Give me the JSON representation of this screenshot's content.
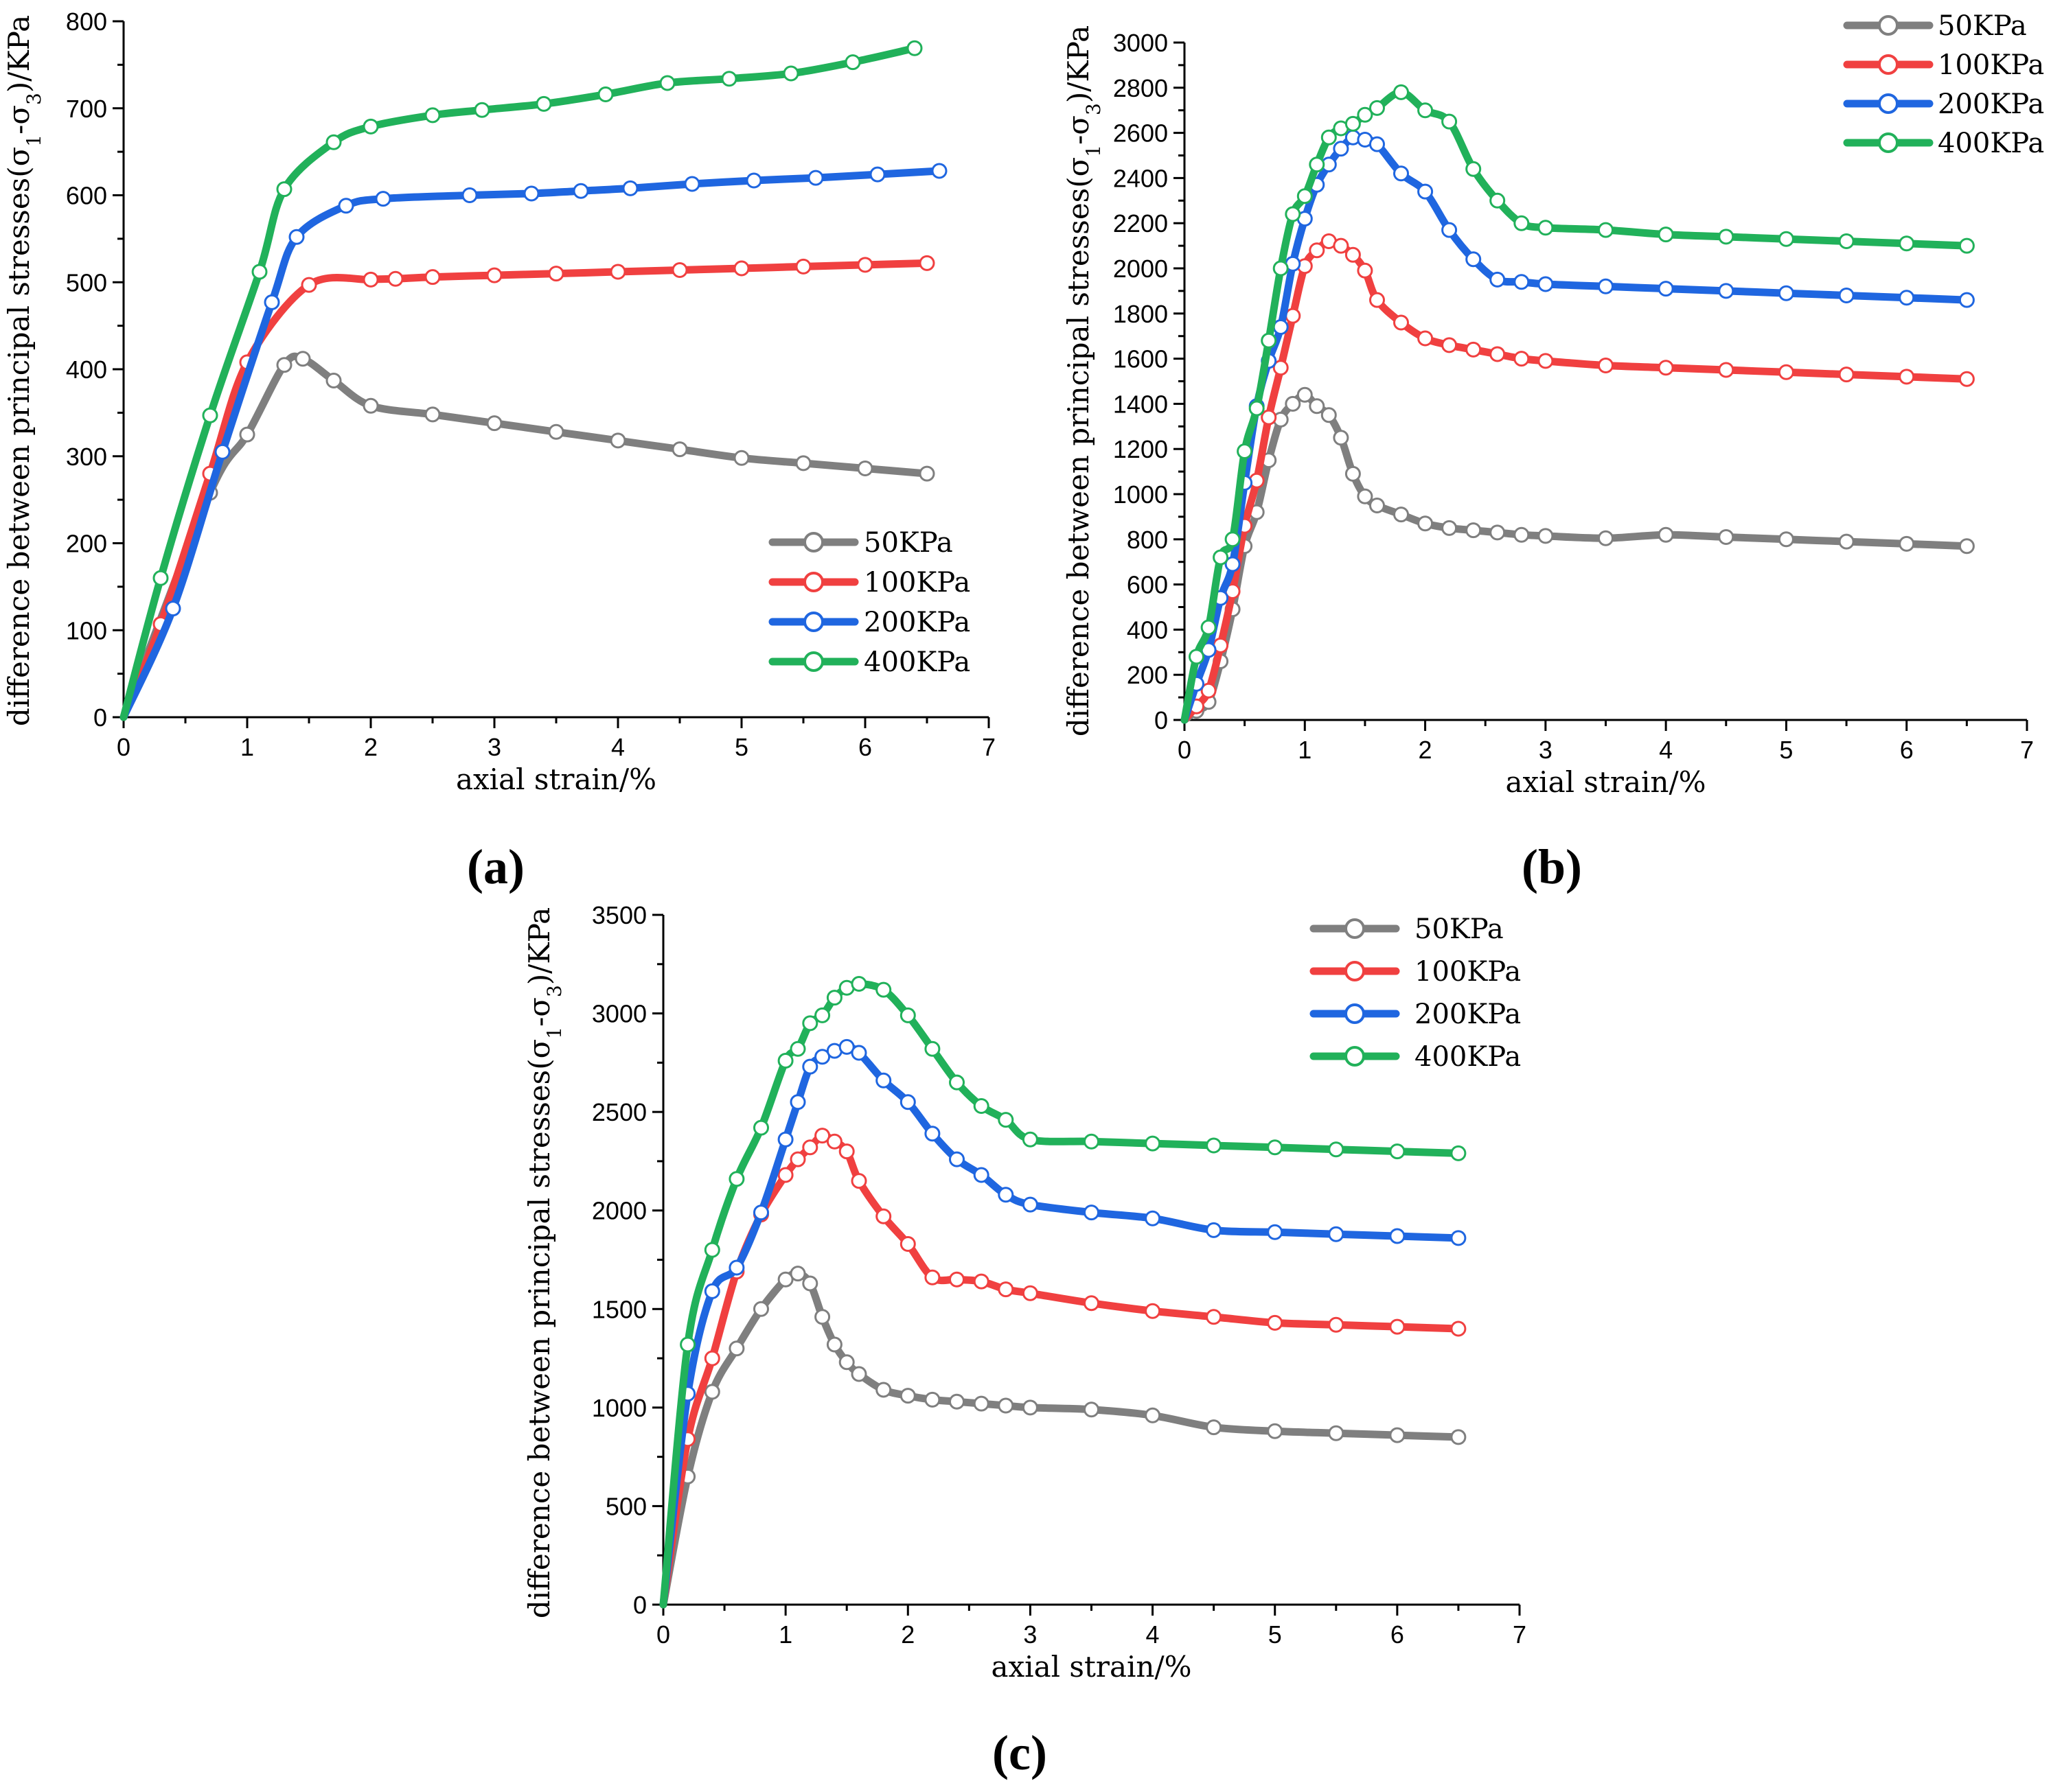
{
  "colors": {
    "s50": "#7f7f7f",
    "s100": "#f04040",
    "s200": "#1f66e0",
    "s400": "#21b15a"
  },
  "chart_data": [
    {
      "type": "line",
      "panel_label": "(a)",
      "xlabel": "axial strain/%",
      "ylabel": "difference between principal stresses(σ1-σ3)/KPa",
      "ylabel_parts": {
        "pre": "difference between principal stresses(σ",
        "s1": "1",
        "mid": "-σ",
        "s3": "3",
        "post": ")/KPa"
      },
      "xlim": [
        0,
        7
      ],
      "ylim": [
        0,
        800
      ],
      "xticks": [
        0,
        1,
        2,
        3,
        4,
        5,
        6,
        7
      ],
      "yticks": [
        0,
        100,
        200,
        300,
        400,
        500,
        600,
        700,
        800
      ],
      "legend_position": "lower-right",
      "series": [
        {
          "name": "50KPa",
          "color": "#7f7f7f",
          "x": [
            0,
            0.7,
            1.0,
            1.3,
            1.45,
            1.7,
            2.0,
            2.5,
            3.0,
            3.5,
            4.0,
            4.5,
            5.0,
            5.5,
            6.0,
            6.5
          ],
          "y": [
            0,
            258,
            325,
            405,
            412,
            387,
            358,
            348,
            338,
            328,
            318,
            308,
            298,
            292,
            286,
            280
          ]
        },
        {
          "name": "100KPa",
          "color": "#f04040",
          "x": [
            0,
            0.3,
            0.7,
            1.0,
            1.5,
            2.0,
            2.2,
            2.5,
            3.0,
            3.5,
            4.0,
            4.5,
            5.0,
            5.5,
            6.0,
            6.5
          ],
          "y": [
            0,
            107,
            280,
            408,
            497,
            503,
            504,
            506,
            508,
            510,
            512,
            514,
            516,
            518,
            520,
            522
          ]
        },
        {
          "name": "200KPa",
          "color": "#1f66e0",
          "x": [
            0,
            0.4,
            0.8,
            1.2,
            1.4,
            1.8,
            2.1,
            2.8,
            3.3,
            3.7,
            4.1,
            4.6,
            5.1,
            5.6,
            6.1,
            6.6
          ],
          "y": [
            0,
            125,
            305,
            477,
            552,
            588,
            596,
            600,
            602,
            605,
            608,
            613,
            617,
            620,
            624,
            628
          ]
        },
        {
          "name": "400KPa",
          "color": "#21b15a",
          "x": [
            0,
            0.3,
            0.7,
            1.1,
            1.3,
            1.7,
            2.0,
            2.5,
            2.9,
            3.4,
            3.9,
            4.4,
            4.9,
            5.4,
            5.9,
            6.4
          ],
          "y": [
            0,
            160,
            347,
            512,
            607,
            661,
            679,
            692,
            698,
            705,
            716,
            729,
            734,
            740,
            753,
            769
          ]
        }
      ]
    },
    {
      "type": "line",
      "panel_label": "(b)",
      "xlabel": "axial strain/%",
      "ylabel": "difference between principal stresses(σ1-σ3)/KPa",
      "ylabel_parts": {
        "pre": "difference between principal stresses(σ",
        "s1": "1",
        "mid": "-σ",
        "s3": "3",
        "post": ")/KPa"
      },
      "xlim": [
        0,
        7
      ],
      "ylim": [
        0,
        3000
      ],
      "xticks": [
        0,
        1,
        2,
        3,
        4,
        5,
        6,
        7
      ],
      "yticks": [
        0,
        200,
        400,
        600,
        800,
        1000,
        1200,
        1400,
        1600,
        1800,
        2000,
        2200,
        2400,
        2600,
        2800,
        3000
      ],
      "legend_position": "top-right",
      "series": [
        {
          "name": "50KPa",
          "color": "#7f7f7f",
          "x": [
            0,
            0.1,
            0.2,
            0.3,
            0.4,
            0.5,
            0.6,
            0.7,
            0.8,
            0.9,
            1.0,
            1.1,
            1.2,
            1.3,
            1.4,
            1.5,
            1.6,
            1.8,
            2.0,
            2.2,
            2.4,
            2.6,
            2.8,
            3.0,
            3.5,
            4.0,
            4.5,
            5.0,
            5.5,
            6.0,
            6.5
          ],
          "y": [
            0,
            40,
            80,
            260,
            490,
            770,
            920,
            1150,
            1330,
            1400,
            1440,
            1390,
            1350,
            1250,
            1090,
            990,
            950,
            910,
            870,
            850,
            840,
            830,
            820,
            815,
            805,
            820,
            810,
            800,
            790,
            780,
            770
          ]
        },
        {
          "name": "100KPa",
          "color": "#f04040",
          "x": [
            0,
            0.1,
            0.2,
            0.3,
            0.4,
            0.5,
            0.6,
            0.7,
            0.8,
            0.9,
            1.0,
            1.1,
            1.2,
            1.3,
            1.4,
            1.5,
            1.6,
            1.8,
            2.0,
            2.2,
            2.4,
            2.6,
            2.8,
            3.0,
            3.5,
            4.0,
            4.5,
            5.0,
            5.5,
            6.0,
            6.5
          ],
          "y": [
            0,
            60,
            130,
            330,
            570,
            860,
            1060,
            1340,
            1560,
            1790,
            2010,
            2080,
            2120,
            2100,
            2060,
            1990,
            1860,
            1760,
            1690,
            1660,
            1640,
            1620,
            1600,
            1590,
            1570,
            1560,
            1550,
            1540,
            1530,
            1520,
            1510
          ]
        },
        {
          "name": "200KPa",
          "color": "#1f66e0",
          "x": [
            0,
            0.1,
            0.2,
            0.3,
            0.4,
            0.5,
            0.6,
            0.7,
            0.8,
            0.9,
            1.0,
            1.1,
            1.2,
            1.3,
            1.4,
            1.5,
            1.6,
            1.8,
            2.0,
            2.2,
            2.4,
            2.6,
            2.8,
            3.0,
            3.5,
            4.0,
            4.5,
            5.0,
            5.5,
            6.0,
            6.5
          ],
          "y": [
            0,
            160,
            310,
            540,
            690,
            1050,
            1390,
            1590,
            1740,
            2020,
            2220,
            2370,
            2460,
            2530,
            2580,
            2570,
            2550,
            2420,
            2340,
            2170,
            2040,
            1950,
            1940,
            1930,
            1920,
            1910,
            1900,
            1890,
            1880,
            1870,
            1860
          ]
        },
        {
          "name": "400KPa",
          "color": "#21b15a",
          "x": [
            0,
            0.1,
            0.2,
            0.3,
            0.4,
            0.5,
            0.6,
            0.7,
            0.8,
            0.9,
            1.0,
            1.1,
            1.2,
            1.3,
            1.4,
            1.5,
            1.6,
            1.8,
            2.0,
            2.2,
            2.4,
            2.6,
            2.8,
            3.0,
            3.5,
            4.0,
            4.5,
            5.0,
            5.5,
            6.0,
            6.5
          ],
          "y": [
            0,
            280,
            410,
            720,
            800,
            1190,
            1380,
            1680,
            2000,
            2240,
            2320,
            2460,
            2580,
            2620,
            2640,
            2680,
            2710,
            2780,
            2700,
            2650,
            2440,
            2300,
            2200,
            2180,
            2170,
            2150,
            2140,
            2130,
            2120,
            2110,
            2100
          ]
        }
      ]
    },
    {
      "type": "line",
      "panel_label": "(c)",
      "xlabel": "axial strain/%",
      "ylabel": "difference between principal stresses(σ1-σ3)/KPa",
      "ylabel_parts": {
        "pre": "difference between principal stresses(σ",
        "s1": "1",
        "mid": "-σ",
        "s3": "3",
        "post": ")/KPa"
      },
      "xlim": [
        0,
        7
      ],
      "ylim": [
        0,
        3500
      ],
      "xticks": [
        0,
        1,
        2,
        3,
        4,
        5,
        6,
        7
      ],
      "yticks": [
        0,
        500,
        1000,
        1500,
        2000,
        2500,
        3000,
        3500
      ],
      "legend_position": "top-right",
      "series": [
        {
          "name": "50KPa",
          "color": "#7f7f7f",
          "x": [
            0,
            0.2,
            0.4,
            0.6,
            0.8,
            1.0,
            1.1,
            1.2,
            1.3,
            1.4,
            1.5,
            1.6,
            1.8,
            2.0,
            2.2,
            2.4,
            2.6,
            2.8,
            3.0,
            3.5,
            4.0,
            4.5,
            5.0,
            5.5,
            6.0,
            6.5
          ],
          "y": [
            0,
            650,
            1080,
            1300,
            1500,
            1650,
            1680,
            1630,
            1460,
            1320,
            1230,
            1170,
            1090,
            1060,
            1040,
            1030,
            1020,
            1010,
            1000,
            990,
            960,
            900,
            880,
            870,
            860,
            850
          ]
        },
        {
          "name": "100KPa",
          "color": "#f04040",
          "x": [
            0,
            0.2,
            0.4,
            0.6,
            0.8,
            1.0,
            1.1,
            1.2,
            1.3,
            1.4,
            1.5,
            1.6,
            1.8,
            2.0,
            2.2,
            2.4,
            2.6,
            2.8,
            3.0,
            3.5,
            4.0,
            4.5,
            5.0,
            5.5,
            6.0,
            6.5
          ],
          "y": [
            0,
            840,
            1250,
            1690,
            1980,
            2180,
            2260,
            2320,
            2380,
            2350,
            2300,
            2150,
            1970,
            1830,
            1660,
            1650,
            1640,
            1600,
            1580,
            1530,
            1490,
            1460,
            1430,
            1420,
            1410,
            1400
          ]
        },
        {
          "name": "200KPa",
          "color": "#1f66e0",
          "x": [
            0,
            0.2,
            0.4,
            0.6,
            0.8,
            1.0,
            1.1,
            1.2,
            1.3,
            1.4,
            1.5,
            1.6,
            1.8,
            2.0,
            2.2,
            2.4,
            2.6,
            2.8,
            3.0,
            3.5,
            4.0,
            4.5,
            5.0,
            5.5,
            6.0,
            6.5
          ],
          "y": [
            0,
            1070,
            1590,
            1710,
            1990,
            2360,
            2550,
            2730,
            2780,
            2810,
            2830,
            2800,
            2660,
            2550,
            2390,
            2260,
            2180,
            2080,
            2030,
            1990,
            1960,
            1900,
            1890,
            1880,
            1870,
            1860
          ]
        },
        {
          "name": "400KPa",
          "color": "#21b15a",
          "x": [
            0,
            0.2,
            0.4,
            0.6,
            0.8,
            1.0,
            1.1,
            1.2,
            1.3,
            1.4,
            1.5,
            1.6,
            1.8,
            2.0,
            2.2,
            2.4,
            2.6,
            2.8,
            3.0,
            3.5,
            4.0,
            4.5,
            5.0,
            5.5,
            6.0,
            6.5
          ],
          "y": [
            0,
            1320,
            1800,
            2160,
            2420,
            2760,
            2820,
            2950,
            2990,
            3080,
            3130,
            3150,
            3120,
            2990,
            2820,
            2650,
            2530,
            2460,
            2360,
            2350,
            2340,
            2330,
            2320,
            2310,
            2300,
            2290
          ]
        }
      ]
    }
  ]
}
